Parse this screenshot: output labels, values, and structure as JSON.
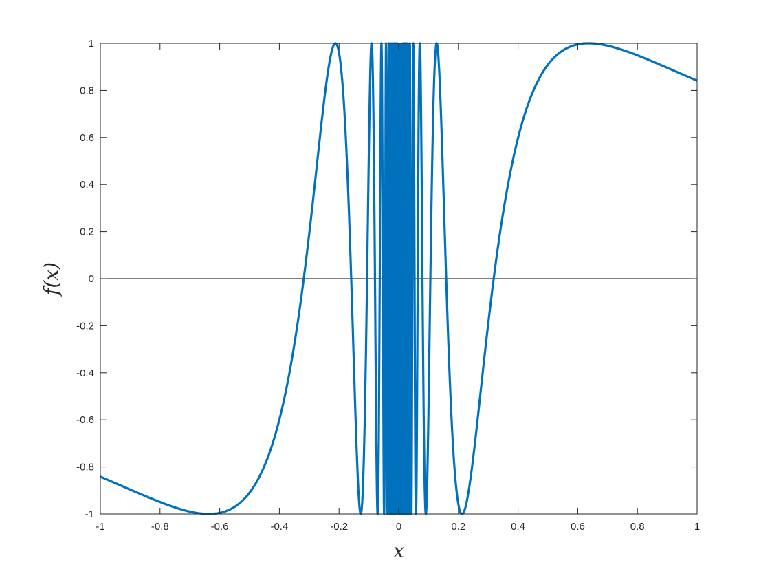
{
  "chart_data": {
    "type": "line",
    "title": "",
    "xlabel": "x",
    "ylabel": "f(x)",
    "xlim": [
      -1,
      1
    ],
    "ylim": [
      -1,
      1
    ],
    "xticks": [
      -1,
      -0.8,
      -0.6,
      -0.4,
      -0.2,
      0,
      0.2,
      0.4,
      0.6,
      0.8,
      1
    ],
    "yticks": [
      -1,
      -0.8,
      -0.6,
      -0.4,
      -0.2,
      0,
      0.2,
      0.4,
      0.6,
      0.8,
      1
    ],
    "xtick_labels": [
      "-1",
      "-0.8",
      "-0.6",
      "-0.4",
      "-0.2",
      "0",
      "0.2",
      "0.4",
      "0.6",
      "0.8",
      "1"
    ],
    "ytick_labels": [
      "-1",
      "-0.8",
      "-0.6",
      "-0.4",
      "-0.2",
      "0",
      "0.2",
      "0.4",
      "0.6",
      "0.8",
      "1"
    ],
    "grid": false,
    "box": true,
    "series": [
      {
        "expression": "sin(1/x)",
        "color": "#0072BD",
        "domain": [
          -1,
          1
        ]
      },
      {
        "expression": "0",
        "color": "#000000",
        "domain": [
          -1,
          1
        ]
      }
    ]
  }
}
